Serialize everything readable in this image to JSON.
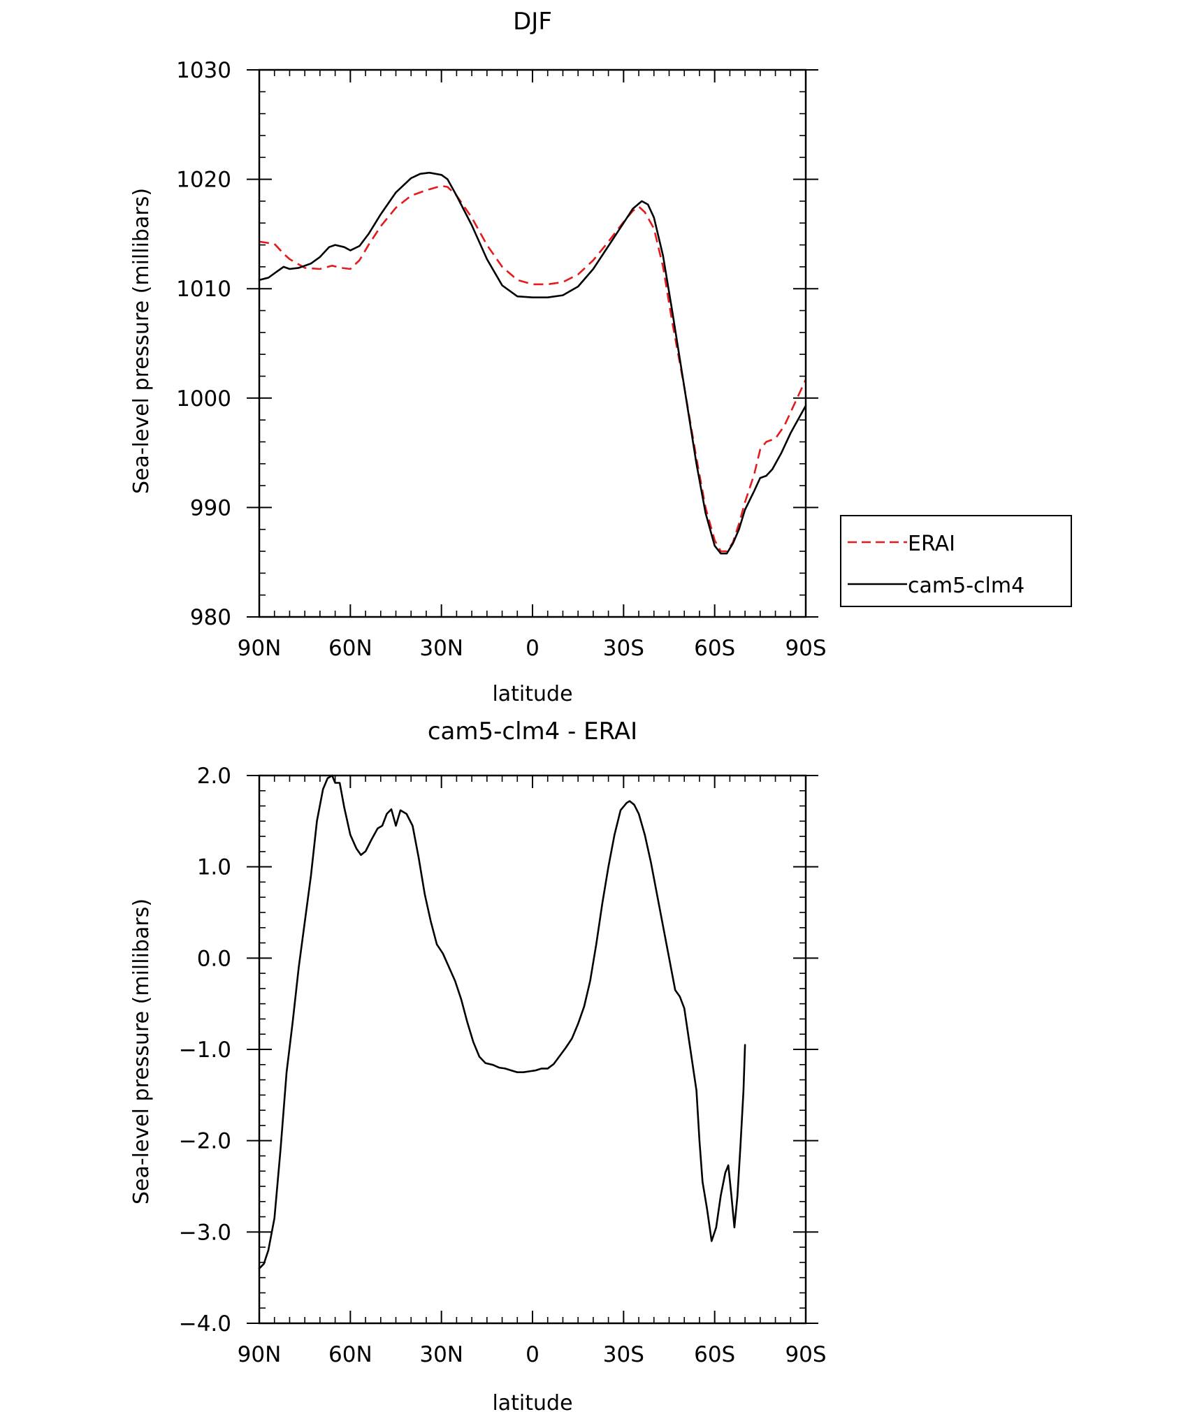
{
  "chart_data": [
    {
      "type": "line",
      "title": "DJF",
      "xlabel": "latitude",
      "ylabel": "Sea-level pressure (millibars)",
      "xlim": [
        90,
        -90
      ],
      "ylim": [
        980,
        1030
      ],
      "x_ticks": [
        90,
        60,
        30,
        0,
        -30,
        -60,
        -90
      ],
      "x_tick_labels": [
        "90N",
        "60N",
        "30N",
        "0",
        "30S",
        "60S",
        "90S"
      ],
      "y_ticks": [
        980,
        990,
        1000,
        1010,
        1020,
        1030
      ],
      "y_tick_labels": [
        "980",
        "990",
        "1000",
        "1010",
        "1020",
        "1030"
      ],
      "grid": false,
      "legend": "outside-right",
      "series": [
        {
          "name": "ERAI",
          "color": "#e41a1c",
          "style": "dashed",
          "points": [
            [
              90,
              1014.3
            ],
            [
              85,
              1014.1
            ],
            [
              82,
              1013.2
            ],
            [
              80,
              1012.7
            ],
            [
              75,
              1011.9
            ],
            [
              70,
              1011.8
            ],
            [
              66,
              1012.1
            ],
            [
              63,
              1011.9
            ],
            [
              60,
              1011.8
            ],
            [
              57,
              1012.6
            ],
            [
              54,
              1014.0
            ],
            [
              50,
              1015.7
            ],
            [
              45,
              1017.4
            ],
            [
              40,
              1018.5
            ],
            [
              35,
              1019.0
            ],
            [
              30,
              1019.4
            ],
            [
              28,
              1019.3
            ],
            [
              25,
              1018.5
            ],
            [
              20,
              1016.5
            ],
            [
              15,
              1014.0
            ],
            [
              10,
              1012.0
            ],
            [
              5,
              1010.8
            ],
            [
              0,
              1010.4
            ],
            [
              -5,
              1010.4
            ],
            [
              -10,
              1010.6
            ],
            [
              -15,
              1011.3
            ],
            [
              -20,
              1012.6
            ],
            [
              -25,
              1014.3
            ],
            [
              -30,
              1016.1
            ],
            [
              -33,
              1017.1
            ],
            [
              -35,
              1017.5
            ],
            [
              -37,
              1017.0
            ],
            [
              -40,
              1015.5
            ],
            [
              -43,
              1012.0
            ],
            [
              -46,
              1007.0
            ],
            [
              -50,
              1001.0
            ],
            [
              -54,
              994.5
            ],
            [
              -57,
              990.0
            ],
            [
              -60,
              987.0
            ],
            [
              -62,
              986.0
            ],
            [
              -64,
              986.0
            ],
            [
              -66,
              986.8
            ],
            [
              -68,
              988.5
            ],
            [
              -70,
              990.5
            ],
            [
              -73,
              993.0
            ],
            [
              -75,
              995.3
            ],
            [
              -77,
              996.0
            ],
            [
              -80,
              996.3
            ],
            [
              -83,
              997.5
            ],
            [
              -86,
              999.3
            ],
            [
              -88,
              1000.5
            ],
            [
              -90,
              1001.7
            ]
          ]
        },
        {
          "name": "cam5-clm4",
          "color": "#000000",
          "style": "solid",
          "points": [
            [
              90,
              1010.8
            ],
            [
              87,
              1011.0
            ],
            [
              84,
              1011.6
            ],
            [
              82,
              1012.0
            ],
            [
              80,
              1011.8
            ],
            [
              77,
              1011.9
            ],
            [
              73,
              1012.3
            ],
            [
              70,
              1012.9
            ],
            [
              67,
              1013.8
            ],
            [
              65,
              1014.0
            ],
            [
              62,
              1013.8
            ],
            [
              60,
              1013.5
            ],
            [
              57,
              1013.9
            ],
            [
              54,
              1015.0
            ],
            [
              50,
              1016.8
            ],
            [
              45,
              1018.8
            ],
            [
              40,
              1020.1
            ],
            [
              37,
              1020.5
            ],
            [
              34,
              1020.6
            ],
            [
              30,
              1020.4
            ],
            [
              28,
              1020.0
            ],
            [
              25,
              1018.5
            ],
            [
              20,
              1015.8
            ],
            [
              15,
              1012.7
            ],
            [
              10,
              1010.3
            ],
            [
              5,
              1009.3
            ],
            [
              0,
              1009.2
            ],
            [
              -5,
              1009.2
            ],
            [
              -10,
              1009.4
            ],
            [
              -15,
              1010.2
            ],
            [
              -20,
              1011.8
            ],
            [
              -25,
              1013.9
            ],
            [
              -30,
              1016.0
            ],
            [
              -33,
              1017.3
            ],
            [
              -36,
              1018.0
            ],
            [
              -38,
              1017.7
            ],
            [
              -40,
              1016.5
            ],
            [
              -43,
              1013.0
            ],
            [
              -46,
              1008.0
            ],
            [
              -50,
              1001.0
            ],
            [
              -54,
              994.0
            ],
            [
              -57,
              989.5
            ],
            [
              -60,
              986.5
            ],
            [
              -62,
              985.8
            ],
            [
              -64,
              985.8
            ],
            [
              -66,
              986.7
            ],
            [
              -68,
              988.0
            ],
            [
              -70,
              989.8
            ],
            [
              -73,
              991.5
            ],
            [
              -75,
              992.7
            ],
            [
              -77,
              992.9
            ],
            [
              -79,
              993.5
            ],
            [
              -82,
              995.0
            ],
            [
              -85,
              996.8
            ],
            [
              -88,
              998.3
            ],
            [
              -90,
              999.3
            ]
          ]
        }
      ]
    },
    {
      "type": "line",
      "title": "cam5-clm4 - ERAI",
      "xlabel": "latitude",
      "ylabel": "Sea-level pressure (millibars)",
      "xlim": [
        90,
        -90
      ],
      "ylim": [
        -4.0,
        2.0
      ],
      "x_ticks": [
        90,
        60,
        30,
        0,
        -30,
        -60,
        -90
      ],
      "x_tick_labels": [
        "90N",
        "60N",
        "30N",
        "0",
        "30S",
        "60S",
        "90S"
      ],
      "y_ticks": [
        -4.0,
        -3.0,
        -2.0,
        -1.0,
        0.0,
        1.0,
        2.0
      ],
      "y_tick_labels": [
        "−4.0",
        "−3.0",
        "−2.0",
        "−1.0",
        "0.0",
        "1.0",
        "2.0"
      ],
      "grid": false,
      "series": [
        {
          "color": "#000000",
          "style": "solid",
          "points": [
            [
              90,
              -3.4
            ],
            [
              88.5,
              -3.35
            ],
            [
              87,
              -3.2
            ],
            [
              85,
              -2.85
            ],
            [
              83,
              -2.1
            ],
            [
              81,
              -1.25
            ],
            [
              79,
              -0.7
            ],
            [
              77,
              -0.1
            ],
            [
              75,
              0.4
            ],
            [
              73,
              0.9
            ],
            [
              71,
              1.5
            ],
            [
              69,
              1.85
            ],
            [
              67.5,
              1.97
            ],
            [
              66,
              2.0
            ],
            [
              65,
              1.92
            ],
            [
              63.5,
              1.92
            ],
            [
              62,
              1.65
            ],
            [
              60,
              1.35
            ],
            [
              58,
              1.2
            ],
            [
              56.5,
              1.13
            ],
            [
              55,
              1.17
            ],
            [
              53,
              1.3
            ],
            [
              51,
              1.42
            ],
            [
              49.5,
              1.45
            ],
            [
              48,
              1.58
            ],
            [
              46.5,
              1.63
            ],
            [
              45,
              1.45
            ],
            [
              43.5,
              1.62
            ],
            [
              41.5,
              1.58
            ],
            [
              39.5,
              1.45
            ],
            [
              37.5,
              1.1
            ],
            [
              35.5,
              0.7
            ],
            [
              33.5,
              0.4
            ],
            [
              31.5,
              0.15
            ],
            [
              29.5,
              0.05
            ],
            [
              27.5,
              -0.1
            ],
            [
              25.5,
              -0.25
            ],
            [
              23.5,
              -0.45
            ],
            [
              21.5,
              -0.7
            ],
            [
              19.5,
              -0.92
            ],
            [
              17.5,
              -1.08
            ],
            [
              15.5,
              -1.15
            ],
            [
              13,
              -1.17
            ],
            [
              11,
              -1.2
            ],
            [
              9,
              -1.21
            ],
            [
              7,
              -1.23
            ],
            [
              5,
              -1.25
            ],
            [
              3,
              -1.25
            ],
            [
              1,
              -1.24
            ],
            [
              -1,
              -1.23
            ],
            [
              -3,
              -1.21
            ],
            [
              -5,
              -1.21
            ],
            [
              -7,
              -1.16
            ],
            [
              -9,
              -1.07
            ],
            [
              -11,
              -0.98
            ],
            [
              -13,
              -0.88
            ],
            [
              -15,
              -0.72
            ],
            [
              -17,
              -0.53
            ],
            [
              -19,
              -0.25
            ],
            [
              -21,
              0.15
            ],
            [
              -23,
              0.6
            ],
            [
              -25,
              1.0
            ],
            [
              -27,
              1.35
            ],
            [
              -29,
              1.62
            ],
            [
              -31,
              1.7
            ],
            [
              -32,
              1.72
            ],
            [
              -33.5,
              1.68
            ],
            [
              -35,
              1.58
            ],
            [
              -37,
              1.35
            ],
            [
              -39,
              1.05
            ],
            [
              -41,
              0.7
            ],
            [
              -43,
              0.35
            ],
            [
              -45,
              0.0
            ],
            [
              -47,
              -0.35
            ],
            [
              -48.5,
              -0.42
            ],
            [
              -50,
              -0.55
            ],
            [
              -52,
              -1.0
            ],
            [
              -54,
              -1.45
            ],
            [
              -55,
              -2.0
            ],
            [
              -56,
              -2.45
            ],
            [
              -57.5,
              -2.75
            ],
            [
              -59,
              -3.1
            ],
            [
              -60.5,
              -2.95
            ],
            [
              -62,
              -2.6
            ],
            [
              -63.5,
              -2.35
            ],
            [
              -64.5,
              -2.27
            ],
            [
              -65.5,
              -2.6
            ],
            [
              -66.5,
              -2.95
            ],
            [
              -67.5,
              -2.6
            ],
            [
              -68.5,
              -2.05
            ],
            [
              -69.5,
              -1.45
            ],
            [
              -70,
              -0.95
            ]
          ]
        }
      ]
    }
  ],
  "legend": {
    "items": [
      {
        "label": "ERAI",
        "color": "#e41a1c",
        "style": "dashed"
      },
      {
        "label": "cam5-clm4",
        "color": "#000000",
        "style": "solid"
      }
    ]
  }
}
